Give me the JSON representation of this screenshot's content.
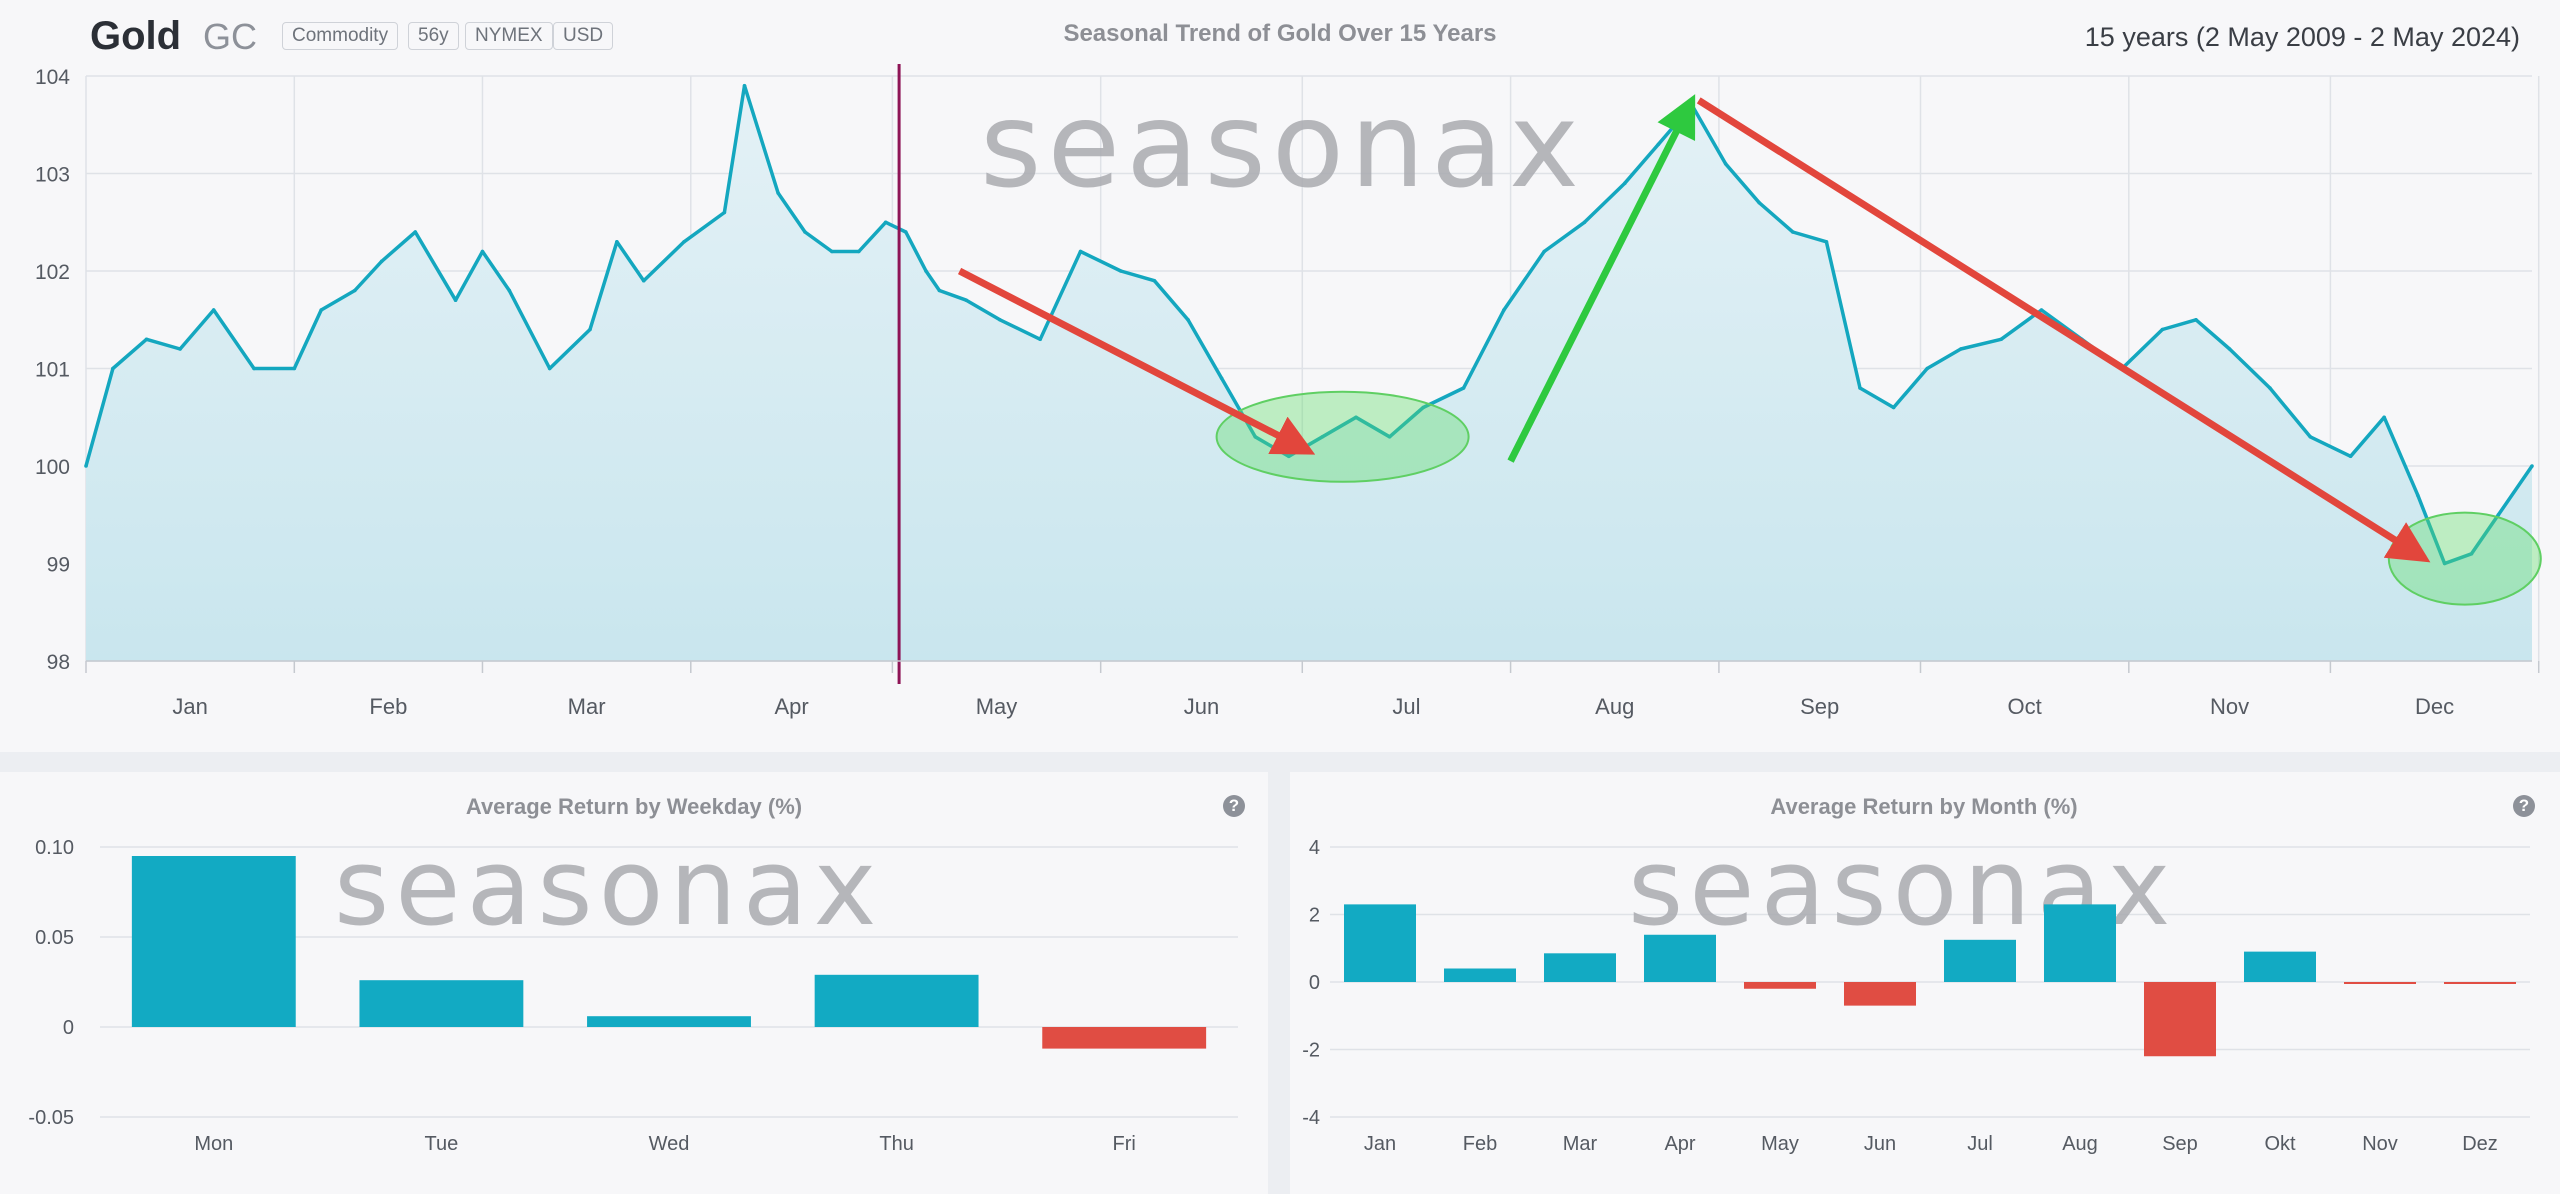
{
  "header": {
    "name": "Gold",
    "ticker": "GC",
    "tags": [
      "Commodity",
      "56y",
      "NYMEX",
      "USD"
    ],
    "title": "Seasonal Trend of Gold Over 15 Years",
    "range": "15 years (2 May 2009 - 2 May 2024)"
  },
  "watermark": "seasonax",
  "help_icon": "question-circle-icon",
  "colors": {
    "line": "#14a7bf",
    "bar_pos": "#12aac3",
    "bar_neg": "#e04d43",
    "arrow_red": "#e2463c",
    "arrow_green": "#2ec93f",
    "today_line": "#8e1456"
  },
  "chart_data": [
    {
      "type": "line",
      "title": "Seasonal Trend of Gold Over 15 Years",
      "x_tick_labels": [
        "Jan",
        "Feb",
        "Mar",
        "Apr",
        "May",
        "Jun",
        "Jul",
        "Aug",
        "Sep",
        "Oct",
        "Nov",
        "Dec"
      ],
      "ylim": [
        98,
        104
      ],
      "y_ticks": [
        98,
        99,
        100,
        101,
        102,
        103,
        104
      ],
      "grid": true,
      "current_date_marker": "May 2",
      "series": [
        {
          "day_of_year": [
            1,
            5,
            10,
            15,
            20,
            26,
            32,
            36,
            41,
            45,
            50,
            56,
            60,
            64,
            70,
            76,
            80,
            84,
            90,
            96,
            99,
            104,
            108,
            112,
            116,
            120,
            123,
            126,
            128,
            132,
            137,
            143,
            149,
            155,
            160,
            165,
            170,
            175,
            180,
            185,
            190,
            195,
            200,
            206,
            212,
            218,
            224,
            230,
            235,
            240,
            245,
            250,
            255,
            260,
            265,
            270,
            275,
            280,
            286,
            292,
            298,
            304,
            310,
            315,
            320,
            326,
            332,
            338,
            343,
            348,
            352,
            356,
            360,
            365
          ],
          "values": [
            100.0,
            101.0,
            101.3,
            101.2,
            101.6,
            101.0,
            101.0,
            101.6,
            101.8,
            102.1,
            102.4,
            101.7,
            102.2,
            101.8,
            101.0,
            101.4,
            102.3,
            101.9,
            102.3,
            102.6,
            103.9,
            102.8,
            102.4,
            102.2,
            102.2,
            102.5,
            102.4,
            102.0,
            101.8,
            101.7,
            101.5,
            101.3,
            102.2,
            102.0,
            101.9,
            101.5,
            100.9,
            100.3,
            100.1,
            100.3,
            100.5,
            100.3,
            100.6,
            100.8,
            101.6,
            102.2,
            102.5,
            102.9,
            103.3,
            103.7,
            103.1,
            102.7,
            102.4,
            102.3,
            100.8,
            100.6,
            101.0,
            101.2,
            101.3,
            101.6,
            101.3,
            101.0,
            101.4,
            101.5,
            101.2,
            100.8,
            100.3,
            100.1,
            100.5,
            99.7,
            99.0,
            99.1,
            99.5,
            100.0
          ]
        }
      ],
      "annotations": [
        {
          "type": "arrow",
          "color": "red",
          "from": [
            131,
            102.0
          ],
          "to": [
            183,
            100.15
          ]
        },
        {
          "type": "arrow",
          "color": "green",
          "from": [
            213,
            100.05
          ],
          "to": [
            240,
            103.75
          ]
        },
        {
          "type": "arrow",
          "color": "red",
          "from": [
            241,
            103.75
          ],
          "to": [
            349,
            99.05
          ]
        },
        {
          "type": "ellipse",
          "color": "green",
          "center": [
            188,
            100.3
          ]
        },
        {
          "type": "ellipse",
          "color": "green",
          "center": [
            355,
            99.05
          ]
        }
      ]
    },
    {
      "type": "bar",
      "title": "Average Return by Weekday (%)",
      "categories": [
        "Mon",
        "Tue",
        "Wed",
        "Thu",
        "Fri"
      ],
      "values": [
        0.095,
        0.026,
        0.006,
        0.029,
        -0.012
      ],
      "ylim": [
        -0.05,
        0.1
      ],
      "y_ticks": [
        -0.05,
        0,
        0.05,
        0.1
      ],
      "y_tick_labels": [
        "-0.05",
        "0",
        "0.05",
        "0.10"
      ],
      "grid": true
    },
    {
      "type": "bar",
      "title": "Average Return by Month (%)",
      "categories": [
        "Jan",
        "Feb",
        "Mar",
        "Apr",
        "May",
        "Jun",
        "Jul",
        "Aug",
        "Sep",
        "Okt",
        "Nov",
        "Dez"
      ],
      "values": [
        2.3,
        0.4,
        0.85,
        1.4,
        -0.2,
        -0.7,
        1.25,
        2.3,
        -2.2,
        0.9,
        -0.05,
        -0.05
      ],
      "ylim": [
        -4,
        4
      ],
      "y_ticks": [
        -4,
        -2,
        0,
        2,
        4
      ],
      "grid": true
    }
  ]
}
